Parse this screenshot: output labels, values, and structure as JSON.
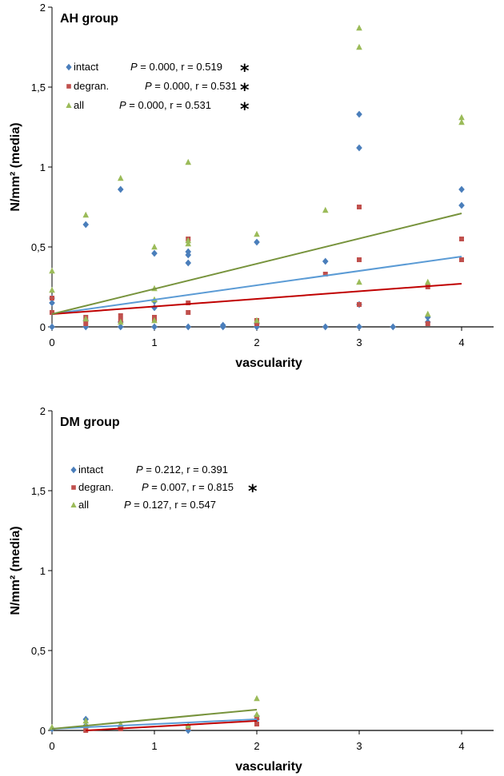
{
  "chart_data": [
    {
      "type": "scatter",
      "title": "AH group",
      "xlabel": "vascularity",
      "ylabel": "N/mm² (media)",
      "xlim": [
        0,
        4.4
      ],
      "ylim": [
        0,
        2
      ],
      "xticks": [
        "0",
        "1",
        "2",
        "3",
        "4"
      ],
      "yticks": [
        "0",
        "0,5",
        "1",
        "1,5",
        "2"
      ],
      "series": [
        {
          "name": "intact",
          "legend_stats": "P = 0.000, r = 0.519",
          "significant": true,
          "marker": "diamond",
          "color": "#4a7ebb",
          "line_color": "#5b9bd5",
          "trend": [
            [
              0,
              0.08
            ],
            [
              4,
              0.44
            ]
          ],
          "points": [
            [
              0,
              0.15
            ],
            [
              0,
              0.18
            ],
            [
              0,
              0
            ],
            [
              0.33,
              0.64
            ],
            [
              0.33,
              0.04
            ],
            [
              0.33,
              0
            ],
            [
              0.67,
              0.86
            ],
            [
              0.67,
              0.03
            ],
            [
              0.67,
              0
            ],
            [
              1,
              0.46
            ],
            [
              1,
              0.12
            ],
            [
              1,
              0.16
            ],
            [
              1,
              0
            ],
            [
              1.33,
              0.47
            ],
            [
              1.33,
              0.45
            ],
            [
              1.33,
              0.4
            ],
            [
              1.33,
              0
            ],
            [
              1.67,
              0.01
            ],
            [
              1.67,
              0
            ],
            [
              2,
              0.53
            ],
            [
              2,
              0.02
            ],
            [
              2,
              0
            ],
            [
              2.67,
              0.41
            ],
            [
              2.67,
              0
            ],
            [
              3,
              1.33
            ],
            [
              3,
              1.12
            ],
            [
              3,
              0.14
            ],
            [
              3,
              0
            ],
            [
              3.33,
              0
            ],
            [
              3.67,
              0.06
            ],
            [
              3.67,
              0.03
            ],
            [
              4,
              0.86
            ],
            [
              4,
              0.76
            ]
          ]
        },
        {
          "name": "degran.",
          "legend_stats": "P = 0.000, r = 0.531",
          "significant": true,
          "marker": "square",
          "color": "#c0504d",
          "line_color": "#c00000",
          "trend": [
            [
              0,
              0.08
            ],
            [
              4,
              0.27
            ]
          ],
          "points": [
            [
              0,
              0.18
            ],
            [
              0,
              0.09
            ],
            [
              0.33,
              0.06
            ],
            [
              0.33,
              0.02
            ],
            [
              0.67,
              0.07
            ],
            [
              0.67,
              0.04
            ],
            [
              1,
              0.06
            ],
            [
              1,
              0.04
            ],
            [
              1.33,
              0.55
            ],
            [
              1.33,
              0.15
            ],
            [
              1.33,
              0.09
            ],
            [
              2,
              0.04
            ],
            [
              2,
              0.02
            ],
            [
              2.67,
              0.33
            ],
            [
              3,
              0.75
            ],
            [
              3,
              0.42
            ],
            [
              3,
              0.14
            ],
            [
              3.67,
              0.25
            ],
            [
              3.67,
              0.02
            ],
            [
              4,
              0.55
            ],
            [
              4,
              0.42
            ]
          ]
        },
        {
          "name": "all",
          "legend_stats": "P = 0.000, r = 0.531",
          "significant": true,
          "marker": "triangle",
          "color": "#9bbb59",
          "line_color": "#77933c",
          "trend": [
            [
              0,
              0.08
            ],
            [
              4,
              0.71
            ]
          ],
          "points": [
            [
              0,
              0.35
            ],
            [
              0,
              0.23
            ],
            [
              0.33,
              0.7
            ],
            [
              0.33,
              0.05
            ],
            [
              0.67,
              0.93
            ],
            [
              0.67,
              0.03
            ],
            [
              1,
              0.5
            ],
            [
              1,
              0.24
            ],
            [
              1,
              0.17
            ],
            [
              1,
              0.04
            ],
            [
              1.33,
              1.03
            ],
            [
              1.33,
              0.54
            ],
            [
              1.33,
              0.52
            ],
            [
              2,
              0.58
            ],
            [
              2,
              0.04
            ],
            [
              2.67,
              0.73
            ],
            [
              3,
              1.87
            ],
            [
              3,
              1.75
            ],
            [
              3,
              0.28
            ],
            [
              3.67,
              0.28
            ],
            [
              3.67,
              0.08
            ],
            [
              4,
              1.31
            ],
            [
              4,
              1.28
            ]
          ]
        }
      ]
    },
    {
      "type": "scatter",
      "title": "DM group",
      "xlabel": "vascularity",
      "ylabel": "N/mm² (media)",
      "xlim": [
        0,
        4.4
      ],
      "ylim": [
        0,
        2
      ],
      "xticks": [
        "0",
        "1",
        "2",
        "3",
        "4"
      ],
      "yticks": [
        "0",
        "0,5",
        "1",
        "1,5",
        "2"
      ],
      "series": [
        {
          "name": "intact",
          "legend_stats": "P = 0.212, r = 0.391",
          "significant": false,
          "marker": "diamond",
          "color": "#4a7ebb",
          "line_color": "#5b9bd5",
          "trend": [
            [
              0,
              0.01
            ],
            [
              2,
              0.07
            ]
          ],
          "points": [
            [
              0,
              0.01
            ],
            [
              0.33,
              0.07
            ],
            [
              0.33,
              0.03
            ],
            [
              0.67,
              0.02
            ],
            [
              1.33,
              0
            ],
            [
              2,
              0.09
            ],
            [
              2,
              0.07
            ]
          ]
        },
        {
          "name": "degran.",
          "legend_stats": "P = 0.007, r = 0.815",
          "significant": true,
          "marker": "square",
          "color": "#c0504d",
          "line_color": "#c00000",
          "trend": [
            [
              0.33,
              0
            ],
            [
              2,
              0.06
            ]
          ],
          "points": [
            [
              0.33,
              0
            ],
            [
              0.67,
              0.01
            ],
            [
              1.33,
              0.02
            ],
            [
              2,
              0.04
            ],
            [
              2,
              0.08
            ]
          ]
        },
        {
          "name": "all",
          "legend_stats": "P = 0.127, r = 0.547",
          "significant": false,
          "marker": "triangle",
          "color": "#9bbb59",
          "line_color": "#77933c",
          "trend": [
            [
              0,
              0.01
            ],
            [
              2,
              0.13
            ]
          ],
          "points": [
            [
              0,
              0.02
            ],
            [
              0.33,
              0.06
            ],
            [
              0.33,
              0.03
            ],
            [
              0.67,
              0.04
            ],
            [
              1.33,
              0.03
            ],
            [
              2,
              0.2
            ],
            [
              2,
              0.1
            ]
          ]
        }
      ]
    }
  ],
  "significance_marker": "*"
}
